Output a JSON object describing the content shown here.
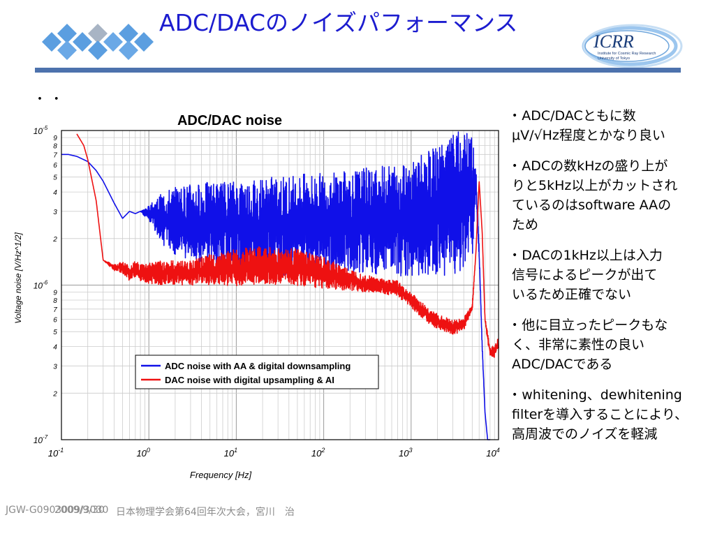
{
  "slide": {
    "title": "ADC/DACのノイズパフォーマンス",
    "bullet_dots": "・  ・",
    "logo_text": [
      "ICRR",
      "Institute for Cosmic Ray Research",
      "University of Tokyo"
    ]
  },
  "notes": [
    [
      "ADC/DACともに数",
      "μV/√Hz程度とかなり良い"
    ],
    [
      "ADCの数kHzの盛り上が",
      "りと5kHz以上がカットされ",
      "ているのはsoftware AAの",
      "ため"
    ],
    [
      "DACの1kHz以上は入力",
      "信号によるピークが出て",
      "いるため正確でない"
    ],
    [
      "他に目立ったピークもな",
      "く、非常に素性の良い",
      "ADC/DACである"
    ],
    [
      "whitening、dewhitening",
      "filterを導入することにより、",
      "高周波でのノイズを軽減"
    ]
  ],
  "footer": {
    "doc_id": "JGW-G0903009/3030",
    "date": "2009/9/30",
    "event": "日本物理学会第64回年次大会，宮川　治"
  },
  "colors": {
    "title": "#1c1ccf",
    "bar": "#4d72ad",
    "adc": "#1010e8",
    "dac": "#ee1111"
  },
  "chart_data": {
    "type": "line",
    "title": "ADC/DAC noise",
    "xlabel": "Frequency [Hz]",
    "ylabel": "Voltage noise [V/Hz^1/2]",
    "x_scale": "log",
    "y_scale": "log",
    "xlim": [
      0.1,
      10000
    ],
    "ylim": [
      1e-07,
      1e-05
    ],
    "grid": true,
    "legend_position": "lower-right",
    "x_ticks": [
      {
        "value": 0.1,
        "base": "10",
        "exp": "-1"
      },
      {
        "value": 1,
        "base": "10",
        "exp": "0"
      },
      {
        "value": 10,
        "base": "10",
        "exp": "1"
      },
      {
        "value": 100,
        "base": "10",
        "exp": "2"
      },
      {
        "value": 1000,
        "base": "10",
        "exp": "3"
      },
      {
        "value": 10000,
        "base": "10",
        "exp": "4"
      }
    ],
    "y_major_ticks": [
      {
        "value": 1e-05,
        "base": "10",
        "exp": "-5"
      },
      {
        "value": 1e-06,
        "base": "10",
        "exp": "-6"
      },
      {
        "value": 1e-07,
        "base": "10",
        "exp": "-7"
      }
    ],
    "y_minor_labels": [
      "9",
      "8",
      "7",
      "6",
      "5",
      "4",
      "3",
      "2"
    ],
    "series": [
      {
        "name": "ADC noise with AA & digital downsampling",
        "color": "#1010e8",
        "x": [
          0.1,
          0.12,
          0.15,
          0.2,
          0.25,
          0.3,
          0.4,
          0.5,
          0.6,
          0.7,
          0.8,
          1,
          1.5,
          2,
          3,
          5,
          10,
          20,
          50,
          100,
          200,
          500,
          1000,
          2000,
          3000,
          4000,
          5000,
          5500,
          6000,
          6500,
          7000,
          7500,
          8000
        ],
        "y": [
          7e-06,
          7e-06,
          6.8e-06,
          6.3e-06,
          5.5e-06,
          4.7e-06,
          3.4e-06,
          2.7e-06,
          3e-06,
          2.9e-06,
          3e-06,
          2.9e-06,
          2.7e-06,
          2.6e-06,
          2.55e-06,
          2.5e-06,
          2.4e-06,
          2.4e-06,
          2.45e-06,
          2.5e-06,
          2.55e-06,
          2.6e-06,
          2.75e-06,
          3e-06,
          3.3e-06,
          3.5e-06,
          3.6e-06,
          4.8e-06,
          1.6e-06,
          4e-07,
          1.5e-07,
          1e-07,
          1e-07
        ],
        "band": [
          0,
          0,
          0,
          0,
          0,
          0,
          0,
          0,
          0,
          0,
          0,
          0.05,
          0.18,
          0.22,
          0.25,
          0.27,
          0.3,
          0.32,
          0.33,
          0.33,
          0.34,
          0.36,
          0.38,
          0.42,
          0.45,
          0.47,
          0.4,
          0.1,
          0.05,
          0.02,
          0,
          0,
          0
        ]
      },
      {
        "name": "DAC noise with digital upsampling & AI",
        "color": "#ee1111",
        "x": [
          0.15,
          0.18,
          0.2,
          0.25,
          0.3,
          0.4,
          0.5,
          0.6,
          0.7,
          0.8,
          1,
          1.5,
          2,
          3,
          5,
          10,
          20,
          50,
          100,
          200,
          400,
          700,
          1000,
          1500,
          2000,
          3000,
          4000,
          5000,
          5500,
          6000,
          6500,
          7000,
          7500,
          8000,
          9000,
          10000
        ],
        "y": [
          9.5e-06,
          8e-06,
          6.5e-06,
          3.5e-06,
          1.45e-06,
          1.3e-06,
          1.3e-06,
          1.2e-06,
          1.25e-06,
          1.2e-06,
          1.2e-06,
          1.2e-06,
          1.2e-06,
          1.2e-06,
          1.25e-06,
          1.3e-06,
          1.35e-06,
          1.3e-06,
          1.2e-06,
          1.08e-06,
          1e-06,
          9.5e-07,
          8e-07,
          6.5e-07,
          5.8e-07,
          5.3e-07,
          5.6e-07,
          7.2e-07,
          1.6e-06,
          4.7e-06,
          2.2e-06,
          6e-07,
          4.6e-07,
          3.7e-07,
          3.7e-07,
          4.2e-07
        ],
        "band": [
          0,
          0,
          0,
          0,
          0,
          0.02,
          0.04,
          0.05,
          0.06,
          0.06,
          0.07,
          0.08,
          0.08,
          0.08,
          0.1,
          0.12,
          0.12,
          0.12,
          0.1,
          0.07,
          0.05,
          0.05,
          0.05,
          0.05,
          0.05,
          0.05,
          0.04,
          0.03,
          0,
          0,
          0,
          0.02,
          0.03,
          0.03,
          0.04,
          0.04
        ]
      }
    ]
  }
}
